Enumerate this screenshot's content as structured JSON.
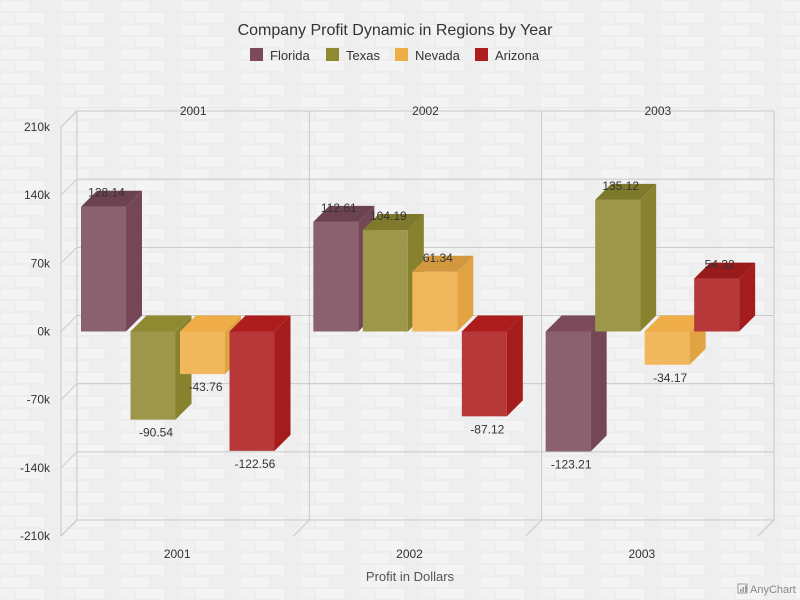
{
  "chart_data": {
    "type": "bar",
    "title": "Company Profit Dynamic in Regions by Year",
    "categories": [
      "2001",
      "2002",
      "2003"
    ],
    "series": [
      {
        "name": "Florida",
        "color": "#7b4b5b",
        "values": [
          128.14,
          112.61,
          -123.21
        ]
      },
      {
        "name": "Texas",
        "color": "#8f8931",
        "values": [
          -90.54,
          104.19,
          135.12
        ]
      },
      {
        "name": "Nevada",
        "color": "#eead47",
        "values": [
          -43.76,
          61.34,
          -34.17
        ]
      },
      {
        "name": "Arizona",
        "color": "#ad1d1d",
        "values": [
          -122.56,
          -87.12,
          54.32
        ]
      }
    ],
    "xlabel": "Profit in Dollars",
    "ylabel": "",
    "ylim": [
      -210,
      210
    ],
    "yticks": [
      "210k",
      "140k",
      "70k",
      "0k",
      "-70k",
      "-140k",
      "-210k"
    ],
    "legend_position": "top",
    "grid": true,
    "style": "3d",
    "credit": "AnyChart"
  }
}
